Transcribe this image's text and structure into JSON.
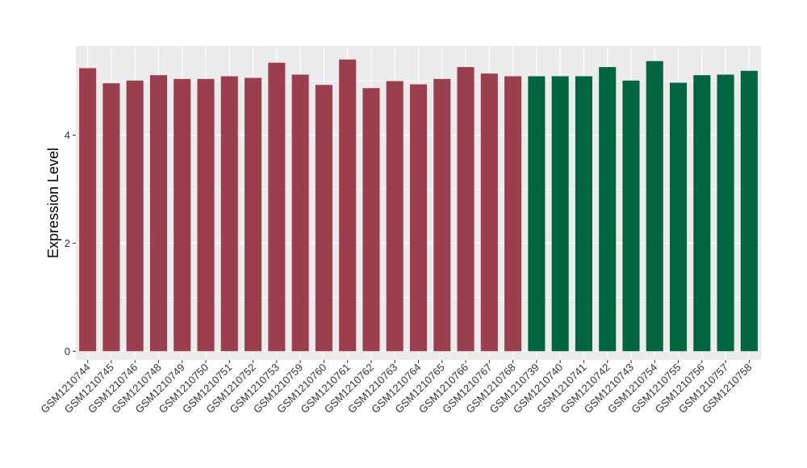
{
  "chart_data": {
    "type": "bar",
    "title": "",
    "xlabel": "",
    "ylabel": "Expression Level",
    "ylim": [
      -0.16,
      5.65
    ],
    "yticks": [
      0,
      2,
      4
    ],
    "grid": true,
    "legend": "none",
    "panel_background": "#ebebeb",
    "grid_color": "#ffffff",
    "categories": [
      "GSM1210744",
      "GSM1210745",
      "GSM1210746",
      "GSM1210748",
      "GSM1210749",
      "GSM1210750",
      "GSM1210751",
      "GSM1210752",
      "GSM1210753",
      "GSM1210759",
      "GSM1210760",
      "GSM1210761",
      "GSM1210762",
      "GSM1210763",
      "GSM1210764",
      "GSM1210765",
      "GSM1210766",
      "GSM1210767",
      "GSM1210768",
      "GSM1210739",
      "GSM1210740",
      "GSM1210741",
      "GSM1210742",
      "GSM1210743",
      "GSM1210754",
      "GSM1210755",
      "GSM1210756",
      "GSM1210757",
      "GSM1210758"
    ],
    "values": [
      5.24,
      4.96,
      5.01,
      5.11,
      5.04,
      5.04,
      5.09,
      5.06,
      5.34,
      5.12,
      4.93,
      5.4,
      4.87,
      5.0,
      4.94,
      5.04,
      5.26,
      5.14,
      5.09,
      5.09,
      5.09,
      5.09,
      5.26,
      5.01,
      5.37,
      4.97,
      5.11,
      5.12,
      5.19
    ],
    "colors": [
      "#9b3f4f",
      "#9b3f4f",
      "#9b3f4f",
      "#9b3f4f",
      "#9b3f4f",
      "#9b3f4f",
      "#9b3f4f",
      "#9b3f4f",
      "#9b3f4f",
      "#9b3f4f",
      "#9b3f4f",
      "#9b3f4f",
      "#9b3f4f",
      "#9b3f4f",
      "#9b3f4f",
      "#9b3f4f",
      "#9b3f4f",
      "#9b3f4f",
      "#9b3f4f",
      "#006642",
      "#006642",
      "#006642",
      "#006642",
      "#006642",
      "#006642",
      "#006642",
      "#006642",
      "#006642",
      "#006642"
    ]
  }
}
